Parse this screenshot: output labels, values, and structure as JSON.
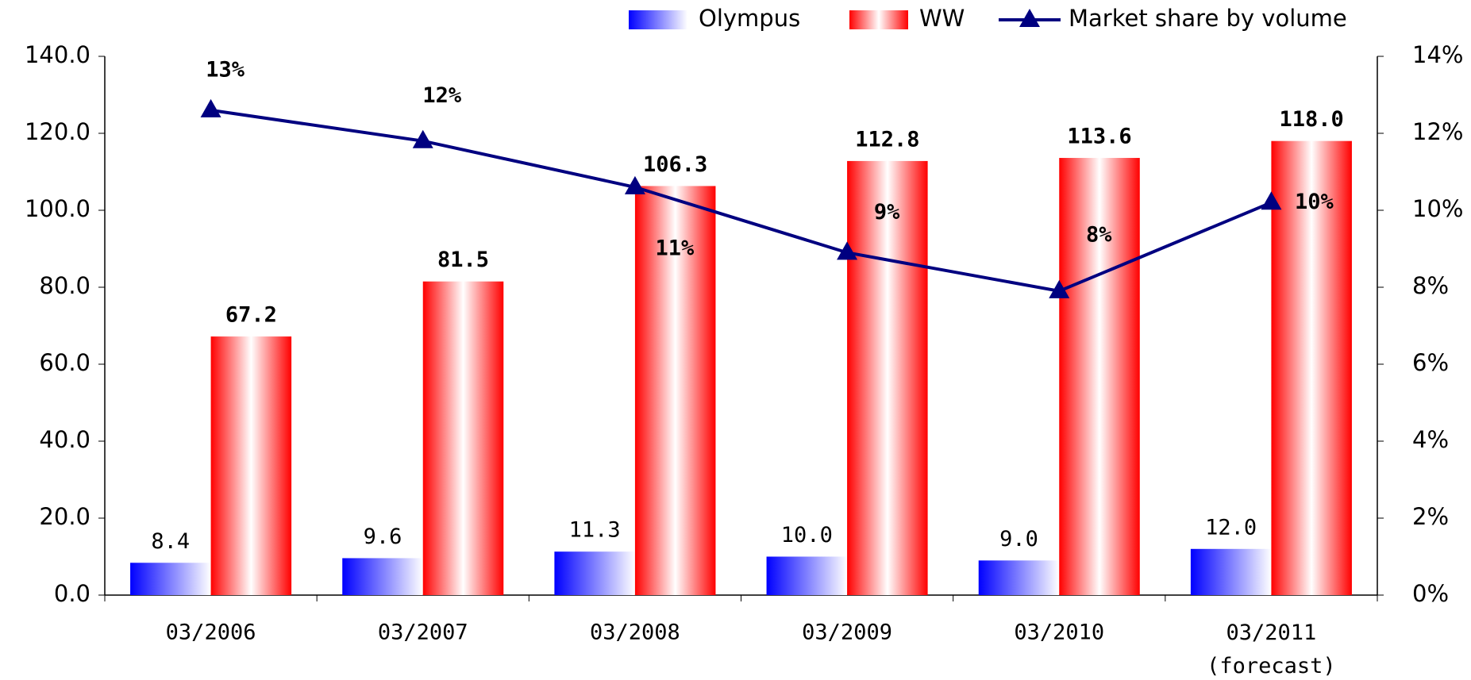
{
  "chart_data": {
    "type": "bar",
    "categories": [
      "03/2006",
      "03/2007",
      "03/2008",
      "03/2009",
      "03/2010",
      "03/2011\n(forecast)"
    ],
    "series": [
      {
        "name": "Olympus",
        "color": "#0000ff",
        "values": [
          8.4,
          9.6,
          11.3,
          10.0,
          9.0,
          12.0
        ],
        "value_labels": [
          "8.4",
          "9.6",
          "11.3",
          "10.0",
          "9.0",
          "12.0"
        ]
      },
      {
        "name": "WW",
        "color": "#ff0000",
        "values": [
          67.2,
          81.5,
          106.3,
          112.8,
          113.6,
          118.0
        ],
        "value_labels": [
          "67.2",
          "81.5",
          "106.3",
          "112.8",
          "113.6",
          "118.0"
        ]
      },
      {
        "name": "Market share by volume",
        "type": "line",
        "axis": "y2",
        "color": "#000080",
        "values": [
          12.6,
          11.8,
          10.6,
          8.9,
          7.9,
          10.2
        ],
        "value_labels": [
          "13%",
          "12%",
          "11%",
          "9%",
          "8%",
          "10%"
        ]
      }
    ],
    "ylim": [
      0,
      140
    ],
    "yticks": [
      {
        "value": 0,
        "label": "0.0"
      },
      {
        "value": 20,
        "label": "20.0"
      },
      {
        "value": 40,
        "label": "40.0"
      },
      {
        "value": 60,
        "label": "60.0"
      },
      {
        "value": 80,
        "label": "80.0"
      },
      {
        "value": 100,
        "label": "100.0"
      },
      {
        "value": 120,
        "label": "120.0"
      },
      {
        "value": 140,
        "label": "140.0"
      }
    ],
    "y2lim": [
      0,
      14
    ],
    "y2ticks": [
      {
        "value": 0,
        "label": "0%"
      },
      {
        "value": 2,
        "label": "2%"
      },
      {
        "value": 4,
        "label": "4%"
      },
      {
        "value": 6,
        "label": "6%"
      },
      {
        "value": 8,
        "label": "8%"
      },
      {
        "value": 10,
        "label": "10%"
      },
      {
        "value": 12,
        "label": "12%"
      },
      {
        "value": 14,
        "label": "14%"
      }
    ],
    "grid": false,
    "legend": "top-right"
  }
}
